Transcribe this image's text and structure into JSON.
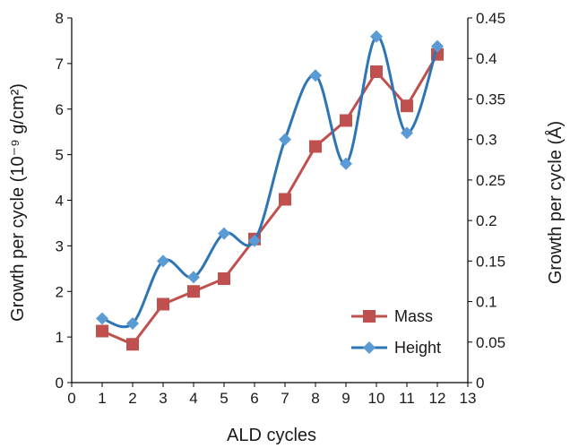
{
  "chart_data": {
    "type": "line",
    "xlabel": "ALD cycles",
    "ylabel_left": "Growth per cycle (10⁻⁹ g/cm²)",
    "ylabel_right": "Growth per cycle (Å)",
    "xlim": [
      0,
      13
    ],
    "ylim_left": [
      0,
      8
    ],
    "ylim_right": [
      0,
      0.45
    ],
    "x_ticks": [
      "0",
      "1",
      "2",
      "3",
      "4",
      "5",
      "6",
      "7",
      "8",
      "9",
      "10",
      "11",
      "12",
      "13"
    ],
    "y_left_ticks": [
      "0",
      "1",
      "2",
      "3",
      "4",
      "5",
      "6",
      "7",
      "8"
    ],
    "y_right_ticks": [
      "0",
      "0.05",
      "0.1",
      "0.15",
      "0.2",
      "0.25",
      "0.3",
      "0.35",
      "0.4",
      "0.45"
    ],
    "grid": false,
    "legend_position": "bottom-right",
    "series": [
      {
        "name": "Mass",
        "axis": "left",
        "color": "#c0504d",
        "marker": "square",
        "smooth": false,
        "x": [
          1,
          2,
          3,
          4,
          5,
          6,
          7,
          8,
          9,
          10,
          11,
          12
        ],
        "values": [
          1.13,
          0.84,
          1.72,
          2.0,
          2.28,
          3.15,
          4.02,
          5.18,
          5.75,
          6.82,
          6.07,
          7.2
        ]
      },
      {
        "name": "Height",
        "axis": "right",
        "color": "#2e75b6",
        "marker": "diamond",
        "smooth": true,
        "x": [
          1,
          2,
          3,
          4,
          5,
          6,
          7,
          8,
          9,
          10,
          11,
          12
        ],
        "values": [
          0.079,
          0.073,
          0.15,
          0.13,
          0.184,
          0.175,
          0.3,
          0.379,
          0.27,
          0.427,
          0.308,
          0.415
        ]
      }
    ]
  }
}
